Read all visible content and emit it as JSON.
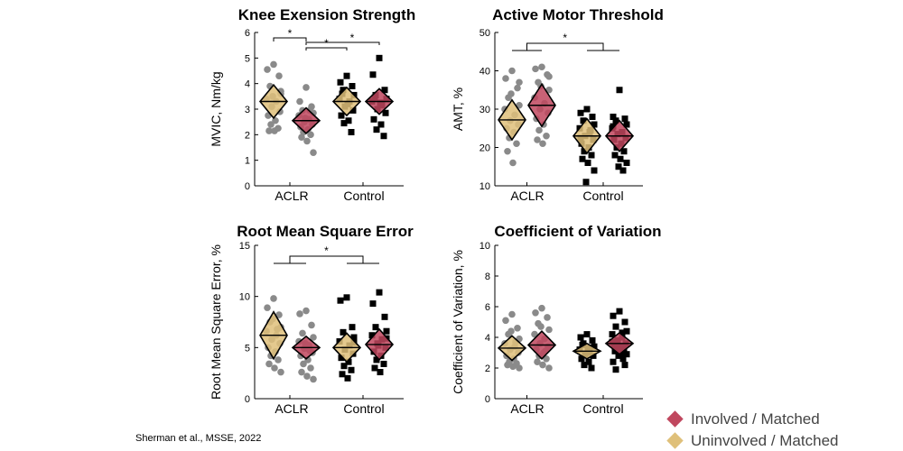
{
  "citation": "Sherman et al., MSSE, 2022",
  "legend": [
    {
      "label": "Involved / Matched",
      "color": "#c0475e"
    },
    {
      "label": "Uninvolved / Matched",
      "color": "#dfc07a"
    }
  ],
  "colors": {
    "uninvolved_fill": "#dfc07a",
    "involved_fill": "#c0475e",
    "aclr_points": "#8a8a8a",
    "control_points": "#000000"
  },
  "chart_data": [
    {
      "type": "scatter",
      "title": "Knee Exension Strength",
      "ylabel": "MVIC, Nm/kg",
      "ylim": [
        0,
        6
      ],
      "yticks": [
        0,
        1,
        2,
        3,
        4,
        5,
        6
      ],
      "groups": [
        "ACLR",
        "Control"
      ],
      "series": [
        {
          "group": "ACLR",
          "limb": "uninvolved",
          "mean": 3.3,
          "ci": [
            2.65,
            3.95
          ],
          "points": [
            4.75,
            4.55,
            4.3,
            3.9,
            3.6,
            3.4,
            3.3,
            3.1,
            2.9,
            2.75,
            2.55,
            2.4,
            2.25,
            2.15,
            2.15,
            3.7,
            3.5
          ]
        },
        {
          "group": "ACLR",
          "limb": "involved",
          "mean": 2.55,
          "ci": [
            2.05,
            3.05
          ],
          "points": [
            3.85,
            3.3,
            3.1,
            2.95,
            2.85,
            2.75,
            2.6,
            2.5,
            2.4,
            2.3,
            2.2,
            2.1,
            2.0,
            1.9,
            1.75,
            1.3,
            2.65,
            2.95
          ]
        },
        {
          "group": "Control",
          "limb": "uninvolved",
          "mean": 3.3,
          "ci": [
            2.75,
            3.85
          ],
          "points": [
            4.3,
            4.05,
            3.9,
            3.75,
            3.55,
            3.4,
            3.3,
            3.1,
            2.95,
            2.75,
            2.55,
            2.45,
            2.1,
            3.6,
            3.2
          ]
        },
        {
          "group": "Control",
          "limb": "involved",
          "mean": 3.3,
          "ci": [
            2.8,
            3.8
          ],
          "points": [
            5.0,
            4.35,
            3.75,
            3.55,
            3.4,
            3.3,
            3.15,
            3.0,
            2.85,
            2.6,
            2.4,
            2.2,
            1.95,
            3.45,
            3.25
          ]
        }
      ],
      "significance": [
        {
          "from": "ACLR-uninvolved",
          "to": "ACLR-involved",
          "label": "*"
        },
        {
          "from": "ACLR-involved",
          "to": "Control-uninvolved",
          "label": "*"
        },
        {
          "from": "ACLR-involved",
          "to": "Control-involved",
          "label": "*"
        }
      ]
    },
    {
      "type": "scatter",
      "title": "Active Motor Threshold",
      "ylabel": "AMT, %",
      "ylim": [
        10,
        50
      ],
      "yticks": [
        10,
        20,
        30,
        40,
        50
      ],
      "groups": [
        "ACLR",
        "Control"
      ],
      "series": [
        {
          "group": "ACLR",
          "limb": "uninvolved",
          "mean": 27.2,
          "ci": [
            22,
            32.4
          ],
          "points": [
            40,
            38,
            35.5,
            33,
            31,
            30,
            28.5,
            27,
            26,
            25,
            24,
            22.5,
            21,
            19,
            16,
            37,
            34
          ]
        },
        {
          "group": "ACLR",
          "limb": "involved",
          "mean": 31,
          "ci": [
            25.5,
            36.5
          ],
          "points": [
            41,
            40.5,
            39,
            37,
            35,
            33,
            31.5,
            30,
            29,
            27.5,
            26,
            24.5,
            23,
            22,
            21,
            38.5,
            36
          ]
        },
        {
          "group": "Control",
          "limb": "uninvolved",
          "mean": 23,
          "ci": [
            18.5,
            27.5
          ],
          "points": [
            30,
            29,
            28,
            27,
            26,
            25,
            24,
            23,
            22,
            21,
            20,
            19,
            18,
            17,
            16,
            14,
            11,
            24.5,
            22.5
          ]
        },
        {
          "group": "Control",
          "limb": "involved",
          "mean": 23,
          "ci": [
            19,
            27
          ],
          "points": [
            35,
            28,
            27.5,
            27,
            26,
            25,
            24,
            23.5,
            22.5,
            22,
            21,
            20,
            19,
            18,
            17,
            16,
            15,
            14,
            25.5
          ]
        }
      ],
      "significance": [
        {
          "from": "ACLR",
          "to": "Control",
          "label": "*"
        }
      ]
    },
    {
      "type": "scatter",
      "title": "Root Mean Square Error",
      "ylabel": "Root Mean Square Error, %",
      "ylim": [
        0,
        15
      ],
      "yticks": [
        0,
        5,
        10,
        15
      ],
      "groups": [
        "ACLR",
        "Control"
      ],
      "series": [
        {
          "group": "ACLR",
          "limb": "uninvolved",
          "mean": 6.2,
          "ci": [
            3.9,
            8.5
          ],
          "points": [
            9.8,
            8.9,
            8.2,
            7.5,
            7.0,
            6.6,
            6.2,
            5.8,
            5.4,
            5.0,
            4.6,
            4.2,
            3.8,
            3.4,
            3.0,
            2.6,
            7.8,
            6.8
          ]
        },
        {
          "group": "ACLR",
          "limb": "involved",
          "mean": 5.0,
          "ci": [
            3.9,
            6.1
          ],
          "points": [
            8.6,
            8.3,
            7.2,
            6.4,
            6.0,
            5.6,
            5.2,
            4.9,
            4.5,
            4.2,
            3.8,
            3.4,
            3.0,
            2.6,
            2.2,
            1.9,
            5.4,
            4.7
          ]
        },
        {
          "group": "Control",
          "limb": "uninvolved",
          "mean": 5.0,
          "ci": [
            3.6,
            6.4
          ],
          "points": [
            9.9,
            9.6,
            7.0,
            6.5,
            6.0,
            5.6,
            5.2,
            4.8,
            4.4,
            4.0,
            3.6,
            3.2,
            2.8,
            2.4,
            2.0,
            5.5
          ]
        },
        {
          "group": "Control",
          "limb": "involved",
          "mean": 5.3,
          "ci": [
            3.8,
            6.8
          ],
          "points": [
            10.4,
            9.3,
            8.0,
            7.0,
            6.6,
            6.2,
            5.8,
            5.4,
            5.0,
            4.6,
            4.2,
            3.8,
            3.4,
            3.0,
            2.6,
            5.9,
            5.2
          ]
        }
      ],
      "significance": [
        {
          "from": "ACLR",
          "to": "Control",
          "label": "*"
        }
      ]
    },
    {
      "type": "scatter",
      "title": "Coefficient of Variation",
      "ylabel": "Coefficient of Variation, %",
      "ylim": [
        0,
        10
      ],
      "yticks": [
        0,
        2,
        4,
        6,
        8,
        10
      ],
      "groups": [
        "ACLR",
        "Control"
      ],
      "series": [
        {
          "group": "ACLR",
          "limb": "uninvolved",
          "mean": 3.3,
          "ci": [
            2.5,
            4.1
          ],
          "points": [
            5.5,
            5.1,
            4.6,
            4.2,
            3.9,
            3.6,
            3.4,
            3.2,
            3.0,
            2.8,
            2.6,
            2.4,
            2.3,
            2.2,
            2.1,
            2.0,
            4.4,
            3.7
          ]
        },
        {
          "group": "ACLR",
          "limb": "involved",
          "mean": 3.5,
          "ci": [
            2.6,
            4.4
          ],
          "points": [
            5.9,
            5.6,
            5.3,
            4.9,
            4.5,
            4.2,
            3.9,
            3.6,
            3.4,
            3.2,
            3.0,
            2.8,
            2.6,
            2.4,
            2.2,
            2.0,
            4.7,
            3.1
          ]
        },
        {
          "group": "Control",
          "limb": "uninvolved",
          "mean": 3.1,
          "ci": [
            2.6,
            3.6
          ],
          "points": [
            4.2,
            4.0,
            3.8,
            3.6,
            3.4,
            3.2,
            3.0,
            2.9,
            2.8,
            2.6,
            2.4,
            2.2,
            2.0,
            3.5,
            3.3
          ]
        },
        {
          "group": "Control",
          "limb": "involved",
          "mean": 3.6,
          "ci": [
            2.9,
            4.3
          ],
          "points": [
            5.7,
            5.4,
            5.0,
            4.7,
            4.4,
            4.2,
            4.0,
            3.8,
            3.6,
            3.5,
            3.4,
            3.3,
            3.2,
            3.1,
            3.0,
            2.9,
            2.8,
            2.6,
            2.4,
            2.2,
            1.9,
            4.3,
            3.7,
            3.4
          ]
        }
      ],
      "significance": []
    }
  ]
}
